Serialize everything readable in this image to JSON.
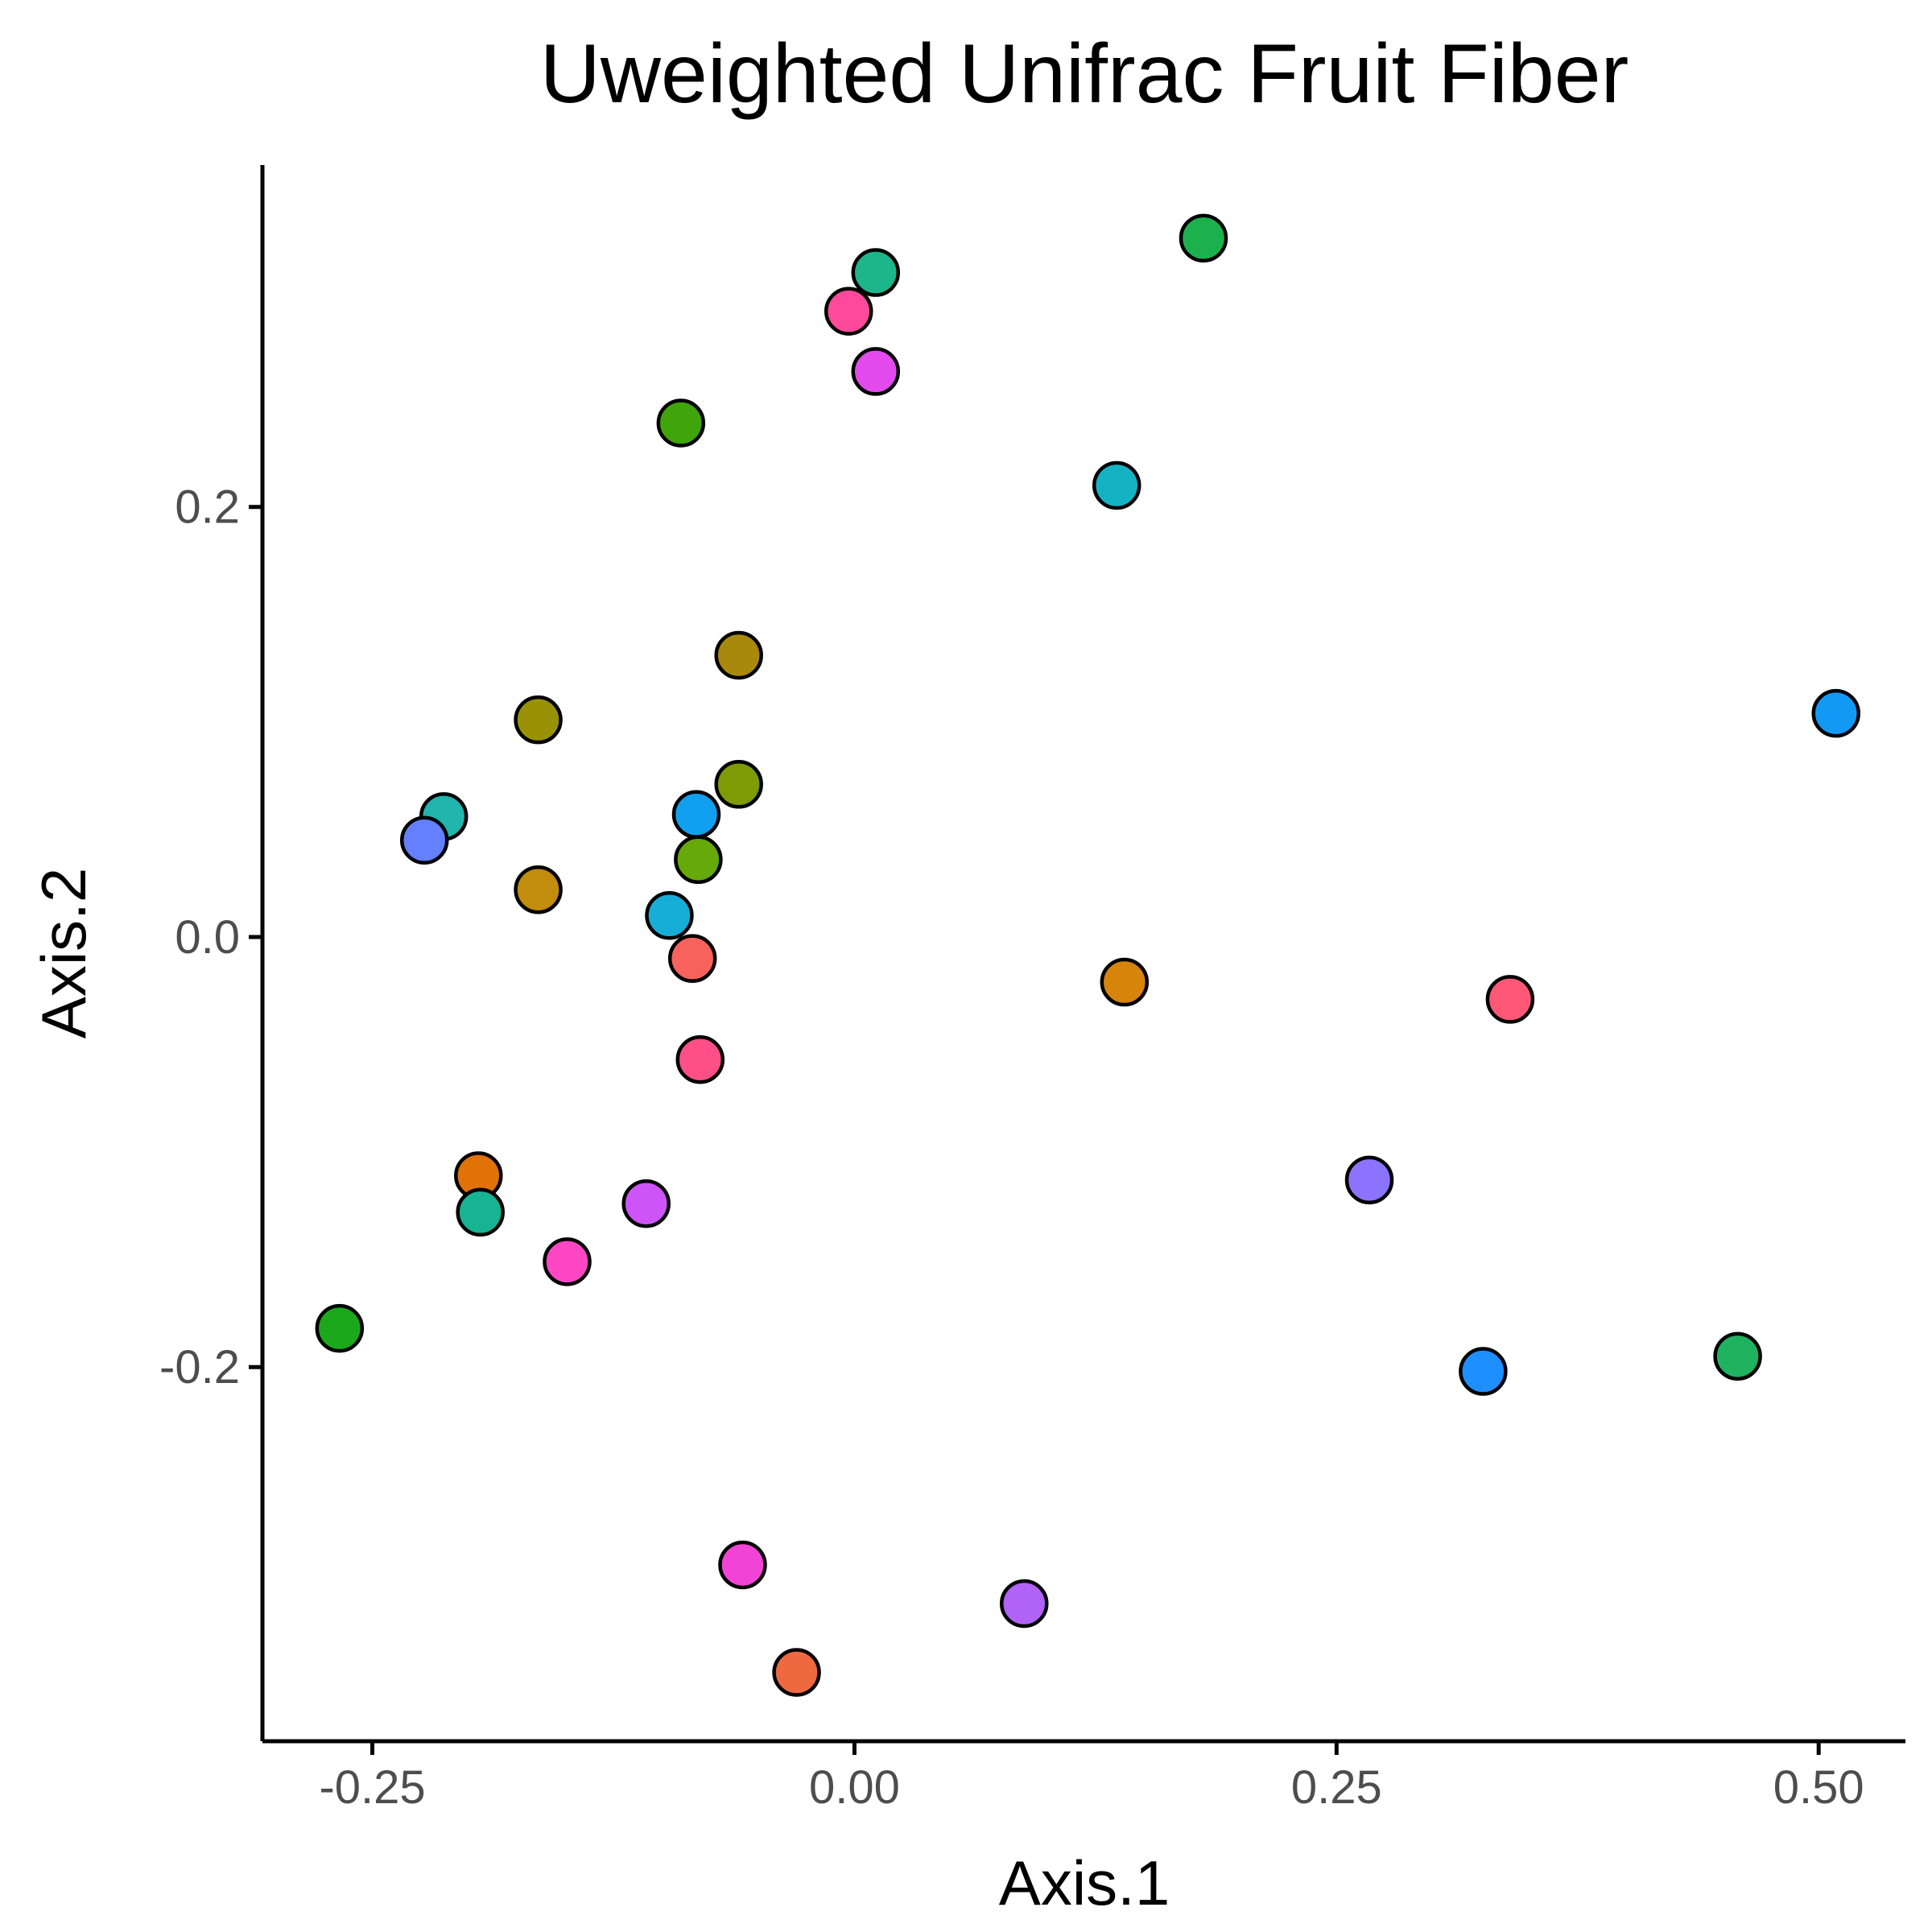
{
  "chart_data": {
    "type": "scatter",
    "title": "Uweighted Unifrac Fruit Fiber",
    "xlabel": "Axis.1",
    "ylabel": "Axis.2",
    "xlim": [
      -0.307,
      0.545
    ],
    "ylim": [
      -0.374,
      0.359
    ],
    "x_ticks": [
      {
        "value": -0.25,
        "label": "-0.25"
      },
      {
        "value": 0.0,
        "label": "0.00"
      },
      {
        "value": 0.25,
        "label": "0.25"
      },
      {
        "value": 0.5,
        "label": "0.50"
      }
    ],
    "y_ticks": [
      {
        "value": 0.2,
        "label": "0.2"
      },
      {
        "value": 0.0,
        "label": "0.0"
      },
      {
        "value": -0.2,
        "label": "-0.2"
      }
    ],
    "grid": false,
    "legend": "none",
    "points": [
      {
        "x": 0.181,
        "y": 0.325,
        "color": "#1BB24E"
      },
      {
        "x": 0.011,
        "y": 0.309,
        "color": "#1DB58A"
      },
      {
        "x": -0.003,
        "y": 0.291,
        "color": "#FF4A9C"
      },
      {
        "x": 0.011,
        "y": 0.263,
        "color": "#E34AEE"
      },
      {
        "x": -0.09,
        "y": 0.239,
        "color": "#3FA50A"
      },
      {
        "x": 0.136,
        "y": 0.21,
        "color": "#14B3C4"
      },
      {
        "x": -0.06,
        "y": 0.131,
        "color": "#A8890C"
      },
      {
        "x": -0.164,
        "y": 0.101,
        "color": "#999207"
      },
      {
        "x": 0.509,
        "y": 0.104,
        "color": "#1199F5"
      },
      {
        "x": -0.06,
        "y": 0.071,
        "color": "#7E9B06"
      },
      {
        "x": -0.213,
        "y": 0.056,
        "color": "#20B5AD"
      },
      {
        "x": -0.082,
        "y": 0.057,
        "color": "#11A0EF"
      },
      {
        "x": -0.223,
        "y": 0.045,
        "color": "#6480FF"
      },
      {
        "x": -0.081,
        "y": 0.036,
        "color": "#66A90A"
      },
      {
        "x": -0.164,
        "y": 0.022,
        "color": "#C28C0C"
      },
      {
        "x": -0.096,
        "y": 0.01,
        "color": "#16AED6"
      },
      {
        "x": -0.084,
        "y": -0.01,
        "color": "#F8625D"
      },
      {
        "x": 0.14,
        "y": -0.021,
        "color": "#D7840A"
      },
      {
        "x": 0.34,
        "y": -0.029,
        "color": "#FF5877"
      },
      {
        "x": -0.08,
        "y": -0.057,
        "color": "#FF4F87"
      },
      {
        "x": -0.195,
        "y": -0.111,
        "color": "#E07208"
      },
      {
        "x": -0.194,
        "y": -0.128,
        "color": "#16B492"
      },
      {
        "x": 0.267,
        "y": -0.113,
        "color": "#8C73FF"
      },
      {
        "x": -0.108,
        "y": -0.124,
        "color": "#CD55F7"
      },
      {
        "x": -0.149,
        "y": -0.151,
        "color": "#FF46C5"
      },
      {
        "x": -0.267,
        "y": -0.182,
        "color": "#1BA81B"
      },
      {
        "x": 0.458,
        "y": -0.195,
        "color": "#1FB25F"
      },
      {
        "x": 0.326,
        "y": -0.202,
        "color": "#1E8FFF"
      },
      {
        "x": -0.058,
        "y": -0.292,
        "color": "#F243D7"
      },
      {
        "x": 0.088,
        "y": -0.31,
        "color": "#B162F9"
      },
      {
        "x": -0.03,
        "y": -0.342,
        "color": "#EE6840"
      }
    ]
  }
}
